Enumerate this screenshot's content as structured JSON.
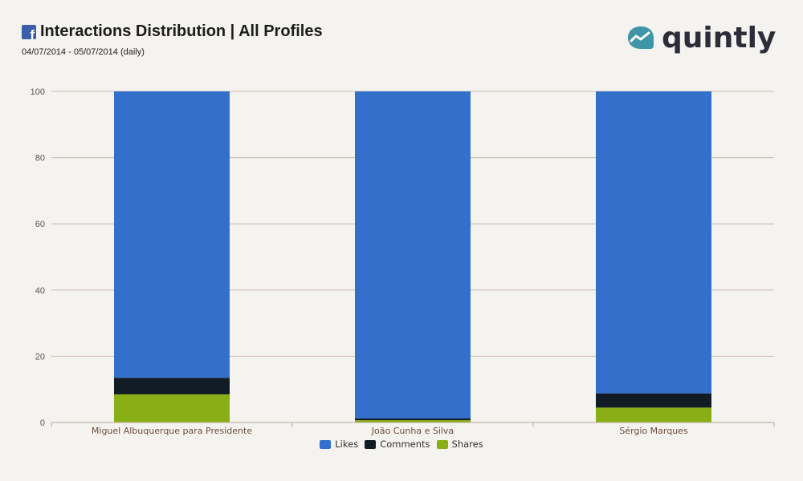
{
  "header": {
    "title": "Interactions Distribution | All Profiles",
    "date_range": "04/07/2014 - 05/07/2014 (daily)",
    "fb_icon": "facebook-icon"
  },
  "logo": {
    "text": "quintly",
    "icon": "quintly-chart-bubble-icon",
    "color": "#2d2d3a",
    "icon_color": "#3f96a8"
  },
  "chart_data": {
    "type": "bar",
    "stacked": true,
    "title": "Interactions Distribution | All Profiles",
    "subtitle": "04/07/2014 - 05/07/2014 (daily)",
    "categories": [
      "Miguel Albuquerque para Presidente",
      "João Cunha e Silva",
      "Sérgio Marques"
    ],
    "series": [
      {
        "name": "Shares",
        "color": "#8aae15",
        "values": [
          8.5,
          0.7,
          4.5
        ]
      },
      {
        "name": "Comments",
        "color": "#111c24",
        "values": [
          5.0,
          0.5,
          4.3
        ]
      },
      {
        "name": "Likes",
        "color": "#3270cc",
        "values": [
          86.5,
          98.8,
          91.2
        ]
      }
    ],
    "legend_order": [
      "Likes",
      "Comments",
      "Shares"
    ],
    "yticks": [
      "0",
      "20",
      "40",
      "60",
      "80",
      "100"
    ],
    "ylim": [
      0,
      100
    ],
    "grid": true,
    "legend_position": "bottom-center"
  }
}
